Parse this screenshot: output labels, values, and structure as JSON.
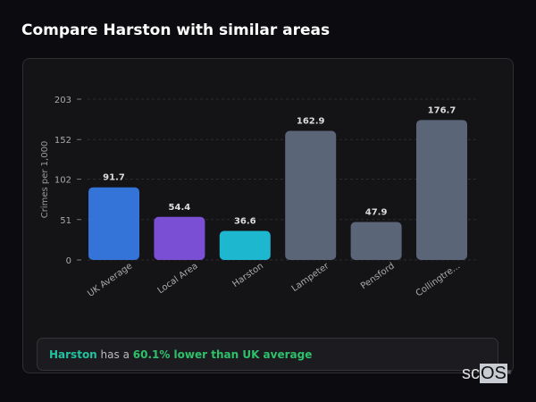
{
  "title": "Compare Harston with similar areas",
  "chart_data": {
    "type": "bar",
    "ylabel": "Crimes per 1,000",
    "xlabel": "",
    "ylim": [
      0,
      203
    ],
    "yticks": [
      0,
      51,
      102,
      152,
      203
    ],
    "grid": true,
    "categories": [
      "UK Average",
      "Local Area",
      "Harston",
      "Lampeter",
      "Pensford",
      "Collingtre..."
    ],
    "values": [
      91.7,
      54.4,
      36.6,
      162.9,
      47.9,
      176.7
    ],
    "value_labels": [
      "91.7",
      "54.4",
      "36.6",
      "162.9",
      "47.9",
      "176.7"
    ],
    "colors": [
      "#3474d8",
      "#7a4fd4",
      "#1db8d0",
      "#5a6578",
      "#5a6578",
      "#5a6578"
    ]
  },
  "summary": {
    "place": "Harston",
    "middle": " has a ",
    "comparison": "60.1% lower than UK average"
  },
  "logo": {
    "text1": "sc",
    "text2": "OS",
    "mark": "®"
  }
}
